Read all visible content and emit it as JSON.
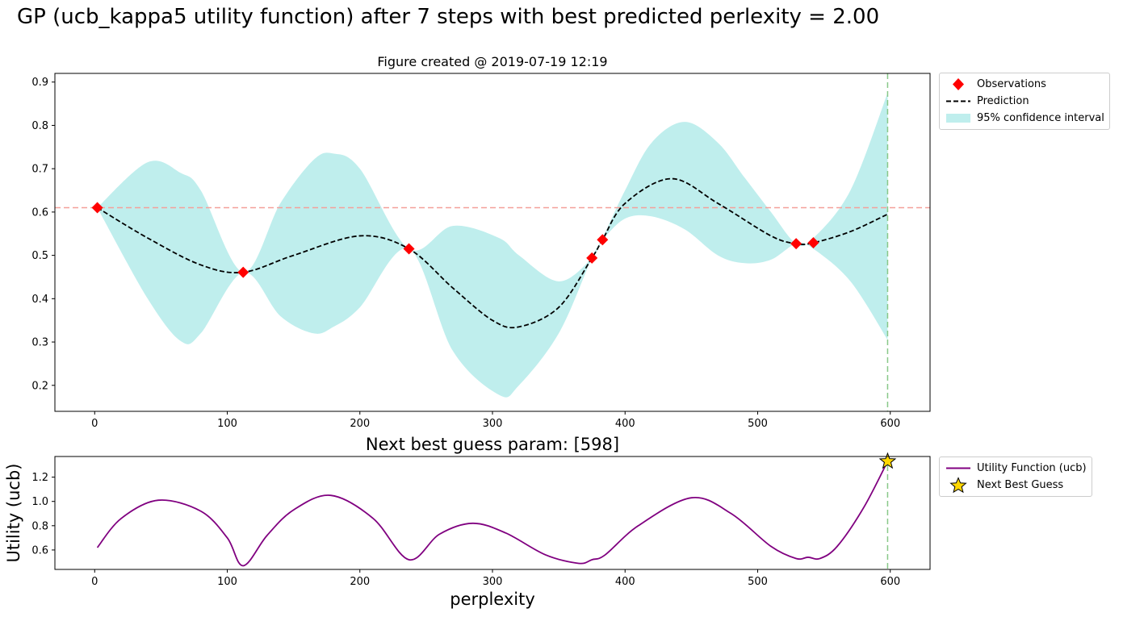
{
  "suptitle": "GP (ucb_kappa5 utility function) after 7 steps with best predicted perlexity = 2.00",
  "colors": {
    "observation": "#ff0000",
    "prediction": "#000000",
    "confidence": "#bfeeed",
    "best_line": "#f4a09a",
    "next_line": "#88c888",
    "utility": "#800080",
    "star": "#ffd700"
  },
  "chart_data": [
    {
      "type": "line",
      "title": "Figure created @ 2019-07-19 12:19",
      "xlim": [
        -30,
        630
      ],
      "ylim": [
        0.14,
        0.92
      ],
      "xticks": [
        0,
        100,
        200,
        300,
        400,
        500,
        600
      ],
      "yticks": [
        0.2,
        0.3,
        0.4,
        0.5,
        0.6,
        0.7,
        0.8,
        0.9
      ],
      "xtick_labels": [
        "0",
        "100",
        "200",
        "300",
        "400",
        "500",
        "600"
      ],
      "ytick_labels": [
        "0.2",
        "0.3",
        "0.4",
        "0.5",
        "0.6",
        "0.7",
        "0.8",
        "0.9"
      ],
      "legend_position": "outside-top-right",
      "observations": {
        "name": "Observations",
        "x": [
          2,
          112,
          237,
          375,
          383,
          529,
          542
        ],
        "y": [
          0.61,
          0.461,
          0.515,
          0.494,
          0.536,
          0.527,
          0.529
        ]
      },
      "prediction": {
        "name": "Prediction",
        "x": [
          2,
          40,
          80,
          112,
          150,
          200,
          237,
          270,
          300,
          320,
          350,
          375,
          383,
          400,
          435,
          470,
          510,
          529,
          542,
          570,
          598
        ],
        "y": [
          0.61,
          0.54,
          0.478,
          0.461,
          0.5,
          0.545,
          0.515,
          0.425,
          0.35,
          0.335,
          0.38,
          0.494,
          0.536,
          0.62,
          0.677,
          0.62,
          0.545,
          0.527,
          0.529,
          0.555,
          0.595
        ]
      },
      "confidence_interval": {
        "name": "95% confidence interval",
        "x": [
          2,
          40,
          65,
          80,
          112,
          140,
          165,
          180,
          200,
          237,
          270,
          305,
          320,
          350,
          375,
          383,
          400,
          420,
          445,
          470,
          490,
          510,
          529,
          542,
          570,
          598
        ],
        "upper": [
          0.61,
          0.715,
          0.69,
          0.65,
          0.461,
          0.62,
          0.72,
          0.735,
          0.7,
          0.515,
          0.568,
          0.54,
          0.5,
          0.44,
          0.494,
          0.54,
          0.65,
          0.76,
          0.808,
          0.76,
          0.68,
          0.6,
          0.527,
          0.54,
          0.65,
          0.875
        ],
        "lower": [
          0.61,
          0.4,
          0.302,
          0.32,
          0.461,
          0.36,
          0.32,
          0.335,
          0.38,
          0.515,
          0.28,
          0.178,
          0.2,
          0.32,
          0.494,
          0.535,
          0.585,
          0.59,
          0.56,
          0.5,
          0.482,
          0.49,
          0.527,
          0.515,
          0.44,
          0.305
        ]
      },
      "best_observed_y": 0.61,
      "next_guess_x": 598
    },
    {
      "type": "line",
      "title": "Next best guess param: [598]",
      "xlabel": "perplexity",
      "ylabel": "Utility (ucb)",
      "xlim": [
        -30,
        630
      ],
      "ylim": [
        0.44,
        1.37
      ],
      "xticks": [
        0,
        100,
        200,
        300,
        400,
        500,
        600
      ],
      "yticks": [
        0.6,
        0.8,
        1.0,
        1.2
      ],
      "xtick_labels": [
        "0",
        "100",
        "200",
        "300",
        "400",
        "500",
        "600"
      ],
      "ytick_labels": [
        "0.6",
        "0.8",
        "1.0",
        "1.2"
      ],
      "legend_position": "outside-top-right",
      "utility": {
        "name": "Utility Function (ucb)",
        "x": [
          2,
          20,
          48,
          80,
          100,
          112,
          130,
          150,
          178,
          210,
          237,
          260,
          285,
          310,
          340,
          365,
          375,
          385,
          410,
          450,
          480,
          510,
          529,
          538,
          547,
          560,
          580,
          598
        ],
        "y": [
          0.62,
          0.86,
          1.01,
          0.92,
          0.7,
          0.47,
          0.72,
          0.93,
          1.05,
          0.86,
          0.52,
          0.73,
          0.82,
          0.74,
          0.56,
          0.49,
          0.52,
          0.56,
          0.8,
          1.03,
          0.9,
          0.63,
          0.53,
          0.54,
          0.53,
          0.63,
          0.95,
          1.33
        ]
      },
      "next_best_guess": {
        "name": "Next Best Guess",
        "x": 598,
        "y": 1.33
      }
    }
  ]
}
